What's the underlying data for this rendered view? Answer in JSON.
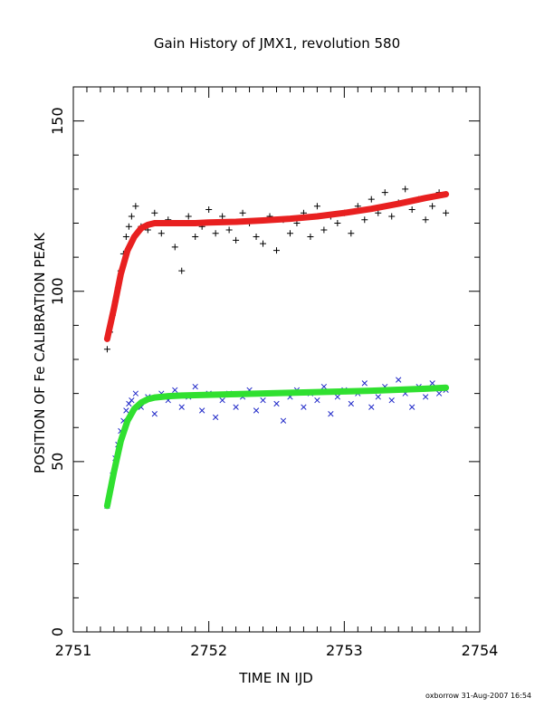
{
  "chart_data": {
    "type": "scatter",
    "title": "Gain History of JMX1, revolution 580",
    "xlabel": "TIME IN IJD",
    "ylabel": "POSITION OF Fe CALIBRATION PEAK",
    "xlim": [
      2751,
      2754
    ],
    "ylim": [
      0,
      160
    ],
    "x_ticks": [
      2751,
      2752,
      2753,
      2754
    ],
    "x_tick_labels": [
      "2751",
      "2752",
      "2753",
      "2754"
    ],
    "y_ticks": [
      0,
      50,
      100,
      150
    ],
    "y_tick_labels": [
      "0",
      "50",
      "100",
      "150"
    ],
    "grid": false,
    "legend": "none",
    "series": [
      {
        "marker": "plus",
        "color": "#000000",
        "x": [
          2751.25,
          2751.27,
          2751.29,
          2751.31,
          2751.33,
          2751.35,
          2751.37,
          2751.39,
          2751.41,
          2751.43,
          2751.46,
          2751.5,
          2751.55,
          2751.6,
          2751.65,
          2751.7,
          2751.75,
          2751.8,
          2751.85,
          2751.9,
          2751.95,
          2752.0,
          2752.05,
          2752.1,
          2752.15,
          2752.2,
          2752.25,
          2752.3,
          2752.35,
          2752.4,
          2752.45,
          2752.5,
          2752.55,
          2752.6,
          2752.65,
          2752.7,
          2752.75,
          2752.8,
          2752.85,
          2752.9,
          2752.95,
          2753.0,
          2753.05,
          2753.1,
          2753.15,
          2753.2,
          2753.25,
          2753.3,
          2753.35,
          2753.4,
          2753.45,
          2753.5,
          2753.55,
          2753.6,
          2753.65,
          2753.7,
          2753.75
        ],
        "y": [
          83,
          88,
          93,
          97,
          101,
          106,
          111,
          116,
          119,
          122,
          125,
          119,
          118,
          123,
          117,
          121,
          113,
          106,
          122,
          116,
          119,
          124,
          117,
          122,
          118,
          115,
          123,
          120,
          116,
          114,
          122,
          112,
          121,
          117,
          120,
          123,
          116,
          125,
          118,
          122,
          120,
          123,
          117,
          125,
          121,
          127,
          123,
          129,
          122,
          126,
          130,
          124,
          127,
          121,
          125,
          129,
          123
        ]
      },
      {
        "marker": "cross",
        "color": "#1f28c8",
        "x": [
          2751.25,
          2751.27,
          2751.29,
          2751.31,
          2751.33,
          2751.35,
          2751.37,
          2751.39,
          2751.41,
          2751.43,
          2751.46,
          2751.5,
          2751.55,
          2751.6,
          2751.65,
          2751.7,
          2751.75,
          2751.8,
          2751.85,
          2751.9,
          2751.95,
          2752.0,
          2752.05,
          2752.1,
          2752.15,
          2752.2,
          2752.25,
          2752.3,
          2752.35,
          2752.4,
          2752.45,
          2752.5,
          2752.55,
          2752.6,
          2752.65,
          2752.7,
          2752.75,
          2752.8,
          2752.85,
          2752.9,
          2752.95,
          2753.0,
          2753.05,
          2753.1,
          2753.15,
          2753.2,
          2753.25,
          2753.3,
          2753.35,
          2753.4,
          2753.45,
          2753.5,
          2753.55,
          2753.6,
          2753.65,
          2753.7,
          2753.75
        ],
        "y": [
          37,
          41,
          46,
          51,
          55,
          59,
          62,
          65,
          67,
          68,
          70,
          66,
          69,
          64,
          70,
          68,
          71,
          66,
          69,
          72,
          65,
          70,
          63,
          68,
          70,
          66,
          69,
          71,
          65,
          68,
          70,
          67,
          62,
          69,
          71,
          66,
          70,
          68,
          72,
          64,
          69,
          71,
          67,
          70,
          73,
          66,
          69,
          72,
          68,
          74,
          70,
          66,
          72,
          69,
          73,
          70,
          71
        ]
      }
    ],
    "fits": [
      {
        "color": "#e82020",
        "x": [
          2751.25,
          2751.3,
          2751.35,
          2751.4,
          2751.45,
          2751.5,
          2751.55,
          2751.6,
          2751.7,
          2751.8,
          2751.9,
          2752.0,
          2752.2,
          2752.4,
          2752.6,
          2752.8,
          2753.0,
          2753.2,
          2753.4,
          2753.6,
          2753.75
        ],
        "y": [
          86,
          95,
          105,
          112,
          116,
          118.5,
          119.5,
          120,
          120,
          120,
          120,
          120.2,
          120.4,
          120.8,
          121.3,
          122,
          123,
          124.2,
          125.7,
          127.4,
          128.5
        ]
      },
      {
        "color": "#30e030",
        "x": [
          2751.25,
          2751.3,
          2751.35,
          2751.4,
          2751.45,
          2751.5,
          2751.55,
          2751.6,
          2751.7,
          2751.8,
          2751.9,
          2752.0,
          2752.2,
          2752.4,
          2752.6,
          2752.8,
          2753.0,
          2753.2,
          2753.4,
          2753.6,
          2753.75
        ],
        "y": [
          37,
          47,
          56,
          62,
          65.5,
          67.3,
          68.3,
          68.8,
          69.2,
          69.4,
          69.5,
          69.6,
          69.8,
          70,
          70.2,
          70.4,
          70.6,
          70.8,
          71.1,
          71.4,
          71.7
        ]
      }
    ]
  },
  "footer": "oxborrow 31-Aug-2007 16:54"
}
